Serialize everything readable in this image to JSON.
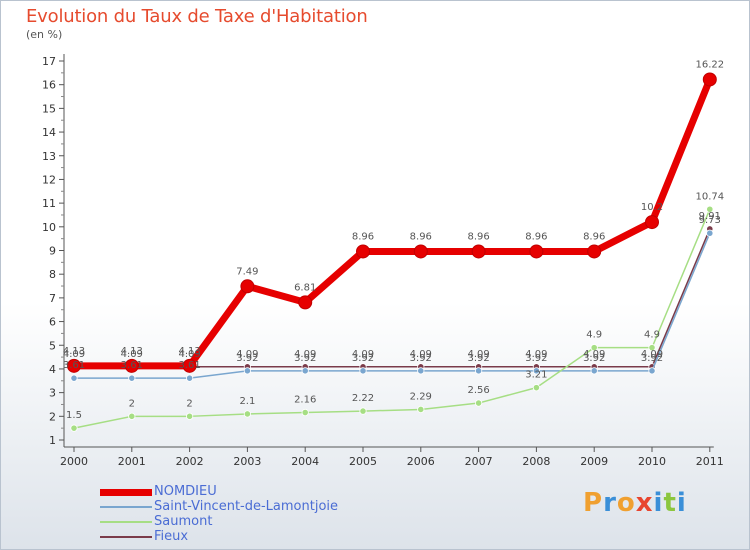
{
  "title": "Evolution du Taux de Taxe d'Habitation",
  "subtitle": "(en %)",
  "logo": {
    "letters": [
      "P",
      "r",
      "o",
      "x",
      "i",
      "t",
      "i"
    ],
    "colors": [
      "#f0a030",
      "#3a8fd8",
      "#f0a030",
      "#e8452f",
      "#3a8fd8",
      "#8cc63e",
      "#3a8fd8"
    ]
  },
  "chart_data": {
    "type": "line",
    "x": [
      "2000",
      "2001",
      "2002",
      "2003",
      "2004",
      "2005",
      "2006",
      "2007",
      "2008",
      "2009",
      "2010",
      "2011"
    ],
    "yticks": [
      1,
      2,
      3,
      4,
      5,
      6,
      7,
      8,
      9,
      10,
      11,
      12,
      13,
      14,
      15,
      16,
      17
    ],
    "ylim": [
      0.5,
      17
    ],
    "series": [
      {
        "name": "NOMDIEU",
        "color": "#e60000",
        "values": [
          4.13,
          4.13,
          4.13,
          7.49,
          6.81,
          8.96,
          8.96,
          8.96,
          8.96,
          8.96,
          10.2,
          16.22
        ],
        "labels": [
          "4.13",
          "4.13",
          "4.13",
          "7.49",
          "6.81",
          "8.96",
          "8.96",
          "8.96",
          "8.96",
          "8.96",
          "10.2",
          "16.22"
        ]
      },
      {
        "name": "Saint-Vincent-de-Lamontjoie",
        "color": "#7aa6cf",
        "values": [
          3.61,
          3.61,
          3.61,
          3.92,
          3.92,
          3.92,
          3.92,
          3.92,
          3.92,
          3.92,
          3.92,
          9.73
        ],
        "labels": [
          "3.61",
          "3.61",
          "3.61",
          "3.92",
          "3.92",
          "3.92",
          "3.92",
          "3.92",
          "3.92",
          "3.92",
          "3.92",
          "9.73"
        ]
      },
      {
        "name": "Saumont",
        "color": "#a6de84",
        "values": [
          1.5,
          2,
          2,
          2.1,
          2.16,
          2.22,
          2.29,
          2.56,
          3.21,
          4.9,
          4.9,
          10.74
        ],
        "labels": [
          "1.5",
          "2",
          "2",
          "2.1",
          "2.16",
          "2.22",
          "2.29",
          "2.56",
          "3.21",
          "4.9",
          "4.9",
          "10.74"
        ]
      },
      {
        "name": "Fieux",
        "color": "#7a3b4a",
        "values": [
          4.09,
          4.09,
          4.09,
          4.09,
          4.09,
          4.09,
          4.09,
          4.09,
          4.09,
          4.09,
          4.09,
          9.91
        ],
        "labels": [
          "4.09",
          "4.09",
          "4.09",
          "4.09",
          "4.09",
          "4.09",
          "4.09",
          "4.09",
          "4.09",
          "4.09",
          "4.09",
          "9.91"
        ]
      }
    ],
    "legend_position": "bottom-left",
    "grid": false
  }
}
